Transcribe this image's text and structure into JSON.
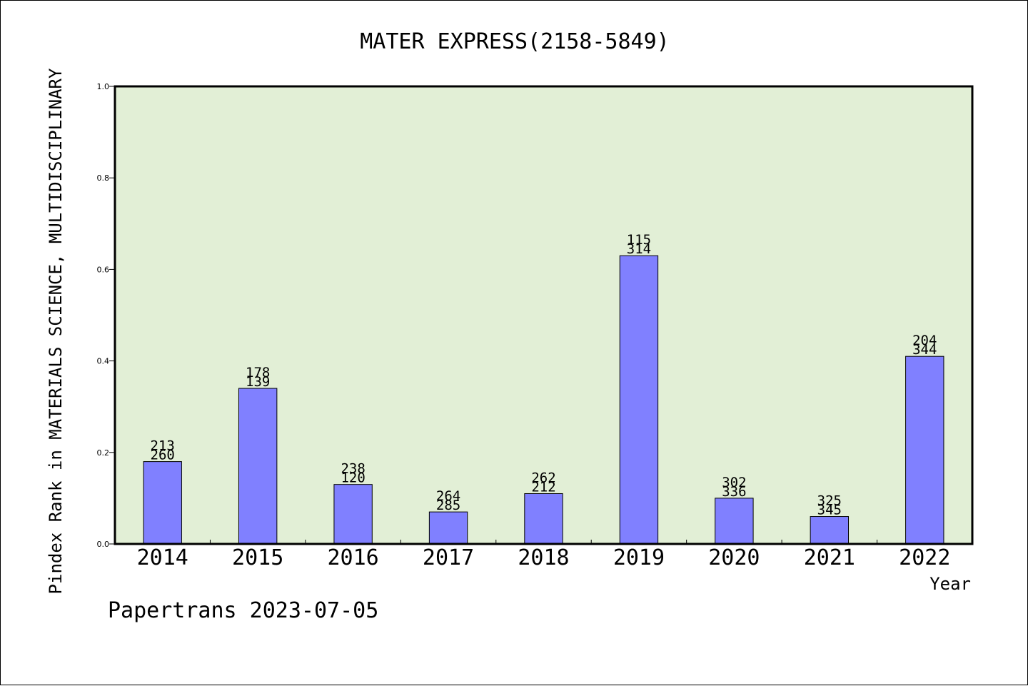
{
  "chart_data": {
    "type": "bar",
    "title": "MATER EXPRESS(2158-5849)",
    "xlabel": "Year",
    "ylabel": "Pindex Rank in MATERIALS SCIENCE, MULTIDISCIPLINARY",
    "categories": [
      "2014",
      "2015",
      "2016",
      "2017",
      "2018",
      "2019",
      "2020",
      "2021",
      "2022"
    ],
    "values": [
      0.18,
      0.34,
      0.13,
      0.07,
      0.11,
      0.63,
      0.1,
      0.06,
      0.41
    ],
    "bar_labels_top": [
      "213",
      "178",
      "238",
      "264",
      "262",
      "115",
      "302",
      "325",
      "204"
    ],
    "bar_labels_bottom": [
      "260",
      "139",
      "120",
      "285",
      "212",
      "314",
      "336",
      "345",
      "344"
    ],
    "ylim": [
      0,
      1.0
    ],
    "yticks": [
      "0.0",
      "0.2",
      "0.4",
      "0.6",
      "0.8",
      "1.0"
    ],
    "grid": false,
    "colors": {
      "plot_bg": "#e2efd6",
      "bar": "#8080ff",
      "bar_edge": "#000000"
    }
  },
  "footer": "Papertrans 2023-07-05"
}
